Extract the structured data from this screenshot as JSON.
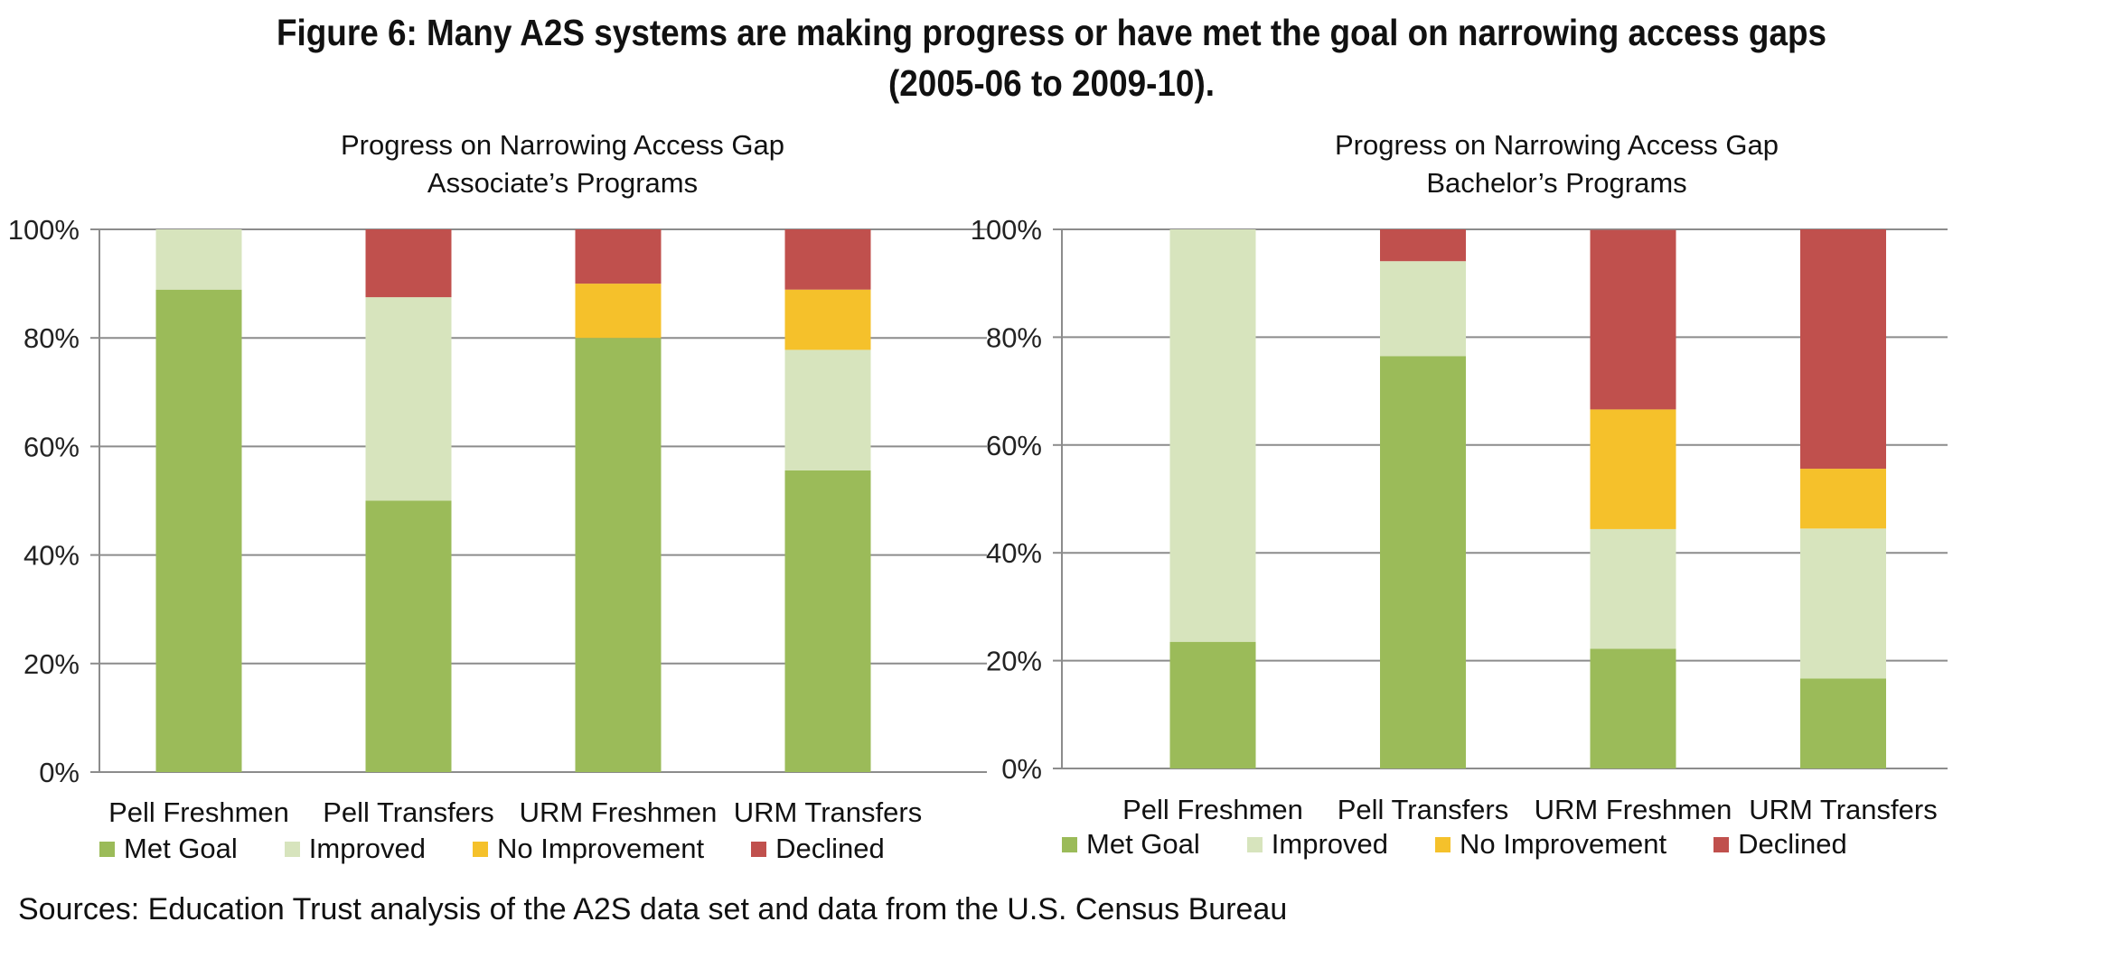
{
  "figure": {
    "title_line1": "Figure 6: Many A2S systems are making progress or have met the goal on narrowing access gaps",
    "title_line2": "(2005-06 to 2009-10).",
    "source": "Sources: Education Trust analysis of the A2S data set and data from the U.S. Census Bureau"
  },
  "colors": {
    "Met Goal": "#9bbb59",
    "Improved": "#d7e4bd",
    "No Improvement": "#f5c12b",
    "Declined": "#c0504d"
  },
  "chart_data": [
    {
      "type": "bar",
      "stacked": true,
      "title_line1": "Progress on Narrowing Access Gap",
      "title_line2": "Associate’s Programs",
      "categories": [
        "Pell Freshmen",
        "Pell Transfers",
        "URM Freshmen",
        "URM Transfers"
      ],
      "series": [
        {
          "name": "Met Goal",
          "values": [
            88.9,
            50.0,
            80.0,
            55.6
          ]
        },
        {
          "name": "Improved",
          "values": [
            11.1,
            37.5,
            0.0,
            22.2
          ]
        },
        {
          "name": "No Improvement",
          "values": [
            0.0,
            0.0,
            10.0,
            11.1
          ]
        },
        {
          "name": "Declined",
          "values": [
            0.0,
            12.5,
            10.0,
            11.1
          ]
        }
      ],
      "ylim": [
        0,
        100
      ],
      "yticks": [
        "0%",
        "20%",
        "40%",
        "60%",
        "80%",
        "100%"
      ],
      "grid": true,
      "legend": "bottom"
    },
    {
      "type": "bar",
      "stacked": true,
      "title_line1": "Progress on Narrowing Access Gap",
      "title_line2": "Bachelor’s Programs",
      "categories": [
        "Pell Freshmen",
        "Pell Transfers",
        "URM Freshmen",
        "URM Transfers"
      ],
      "series": [
        {
          "name": "Met Goal",
          "values": [
            23.5,
            76.5,
            22.2,
            16.7
          ]
        },
        {
          "name": "Improved",
          "values": [
            76.5,
            17.6,
            22.2,
            27.8
          ]
        },
        {
          "name": "No Improvement",
          "values": [
            0.0,
            0.0,
            22.2,
            11.1
          ]
        },
        {
          "name": "Declined",
          "values": [
            0.0,
            5.9,
            33.3,
            44.4
          ]
        }
      ],
      "ylim": [
        0,
        100
      ],
      "yticks": [
        "0%",
        "20%",
        "40%",
        "60%",
        "80%",
        "100%"
      ],
      "grid": true,
      "legend": "bottom"
    }
  ]
}
